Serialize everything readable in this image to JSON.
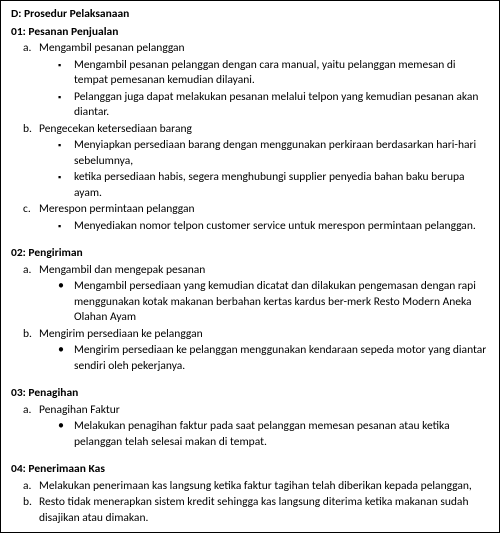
{
  "title": "D: Prosedur Pelaksanaan",
  "sections": [
    {
      "title": "01: Pesanan Penjualan",
      "items": [
        {
          "marker": "a.",
          "text": "Mengambil pesanan pelanggan",
          "sub_style": "square",
          "subs": [
            "Mengambil pesanan pelanggan dengan cara manual, yaitu pelanggan memesan di tempat pemesanan kemudian dilayani.",
            "Pelanggan juga dapat melakukan pesanan melalui telpon yang kemudian pesanan akan diantar."
          ]
        },
        {
          "marker": "b.",
          "text": "Pengecekan ketersediaan barang",
          "sub_style": "square",
          "subs": [
            "Menyiapkan persediaan barang dengan menggunakan perkiraan berdasarkan hari-hari sebelumnya,",
            "ketika persediaan habis, segera menghubungi supplier penyedia bahan baku berupa ayam."
          ]
        },
        {
          "marker": "c.",
          "text": "Merespon permintaan pelanggan",
          "sub_style": "square",
          "subs": [
            "Menyediakan nomor telpon customer service untuk merespon permintaan pelanggan."
          ]
        }
      ]
    },
    {
      "title": "02: Pengiriman",
      "items": [
        {
          "marker": "a.",
          "text": "Mengambil dan mengepak pesanan",
          "sub_style": "bullet",
          "subs": [
            "Mengambil persediaan yang kemudian dicatat dan dilakukan pengemasan dengan rapi menggunakan kotak makanan berbahan kertas kardus ber-merk Resto Modern Aneka Olahan Ayam"
          ]
        },
        {
          "marker": "b.",
          "text": "Mengirim persediaan ke pelanggan",
          "sub_style": "bullet",
          "subs": [
            "Mengirim persediaan ke pelanggan menggunakan kendaraan sepeda motor yang diantar sendiri oleh pekerjanya."
          ]
        }
      ]
    },
    {
      "title": "03: Penagihan",
      "items": [
        {
          "marker": "a.",
          "text": "Penagihan Faktur",
          "sub_style": "bullet",
          "subs": [
            "Melakukan penagihan faktur pada saat pelanggan memesan pesanan atau ketika pelanggan telah selesai makan di tempat."
          ]
        }
      ]
    },
    {
      "title": "04: Penerimaan Kas",
      "items": [
        {
          "marker": "a.",
          "text": "Melakukan penerimaan kas langsung ketika faktur tagihan telah diberikan kepada pelanggan,",
          "sub_style": null,
          "subs": []
        },
        {
          "marker": "b.",
          "text": "Resto tidak menerapkan sistem kredit sehingga kas langsung diterima ketika makanan sudah disajikan atau dimakan.",
          "sub_style": null,
          "subs": []
        }
      ]
    }
  ]
}
